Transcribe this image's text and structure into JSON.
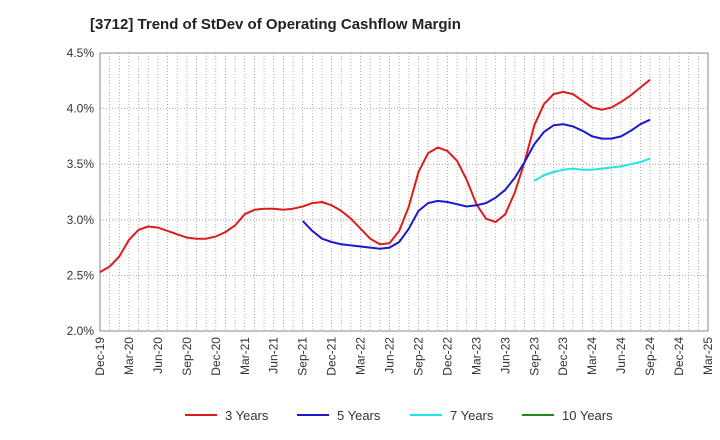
{
  "chart_data": {
    "type": "line",
    "title": "[3712]  Trend of StDev of Operating Cashflow Margin",
    "xlabel": "",
    "ylabel": "",
    "ylim": [
      2.0,
      4.5
    ],
    "y_ticks": [
      "2.0%",
      "2.5%",
      "3.0%",
      "3.5%",
      "4.0%",
      "4.5%"
    ],
    "x_ticks": [
      "Dec-19",
      "Mar-20",
      "Jun-20",
      "Sep-20",
      "Dec-20",
      "Mar-21",
      "Jun-21",
      "Sep-21",
      "Dec-21",
      "Mar-22",
      "Jun-22",
      "Sep-22",
      "Dec-22",
      "Mar-23",
      "Jun-23",
      "Sep-23",
      "Dec-23",
      "Mar-24",
      "Jun-24",
      "Sep-24",
      "Dec-24",
      "Mar-25"
    ],
    "grid": true,
    "legend_position": "bottom",
    "series": [
      {
        "name": "3 Years",
        "color": "#dd1c1c",
        "values": [
          {
            "t": 0,
            "v": 2.53
          },
          {
            "t": 1,
            "v": 2.58
          },
          {
            "t": 2,
            "v": 2.67
          },
          {
            "t": 3,
            "v": 2.82
          },
          {
            "t": 4,
            "v": 2.91
          },
          {
            "t": 5,
            "v": 2.94
          },
          {
            "t": 6,
            "v": 2.93
          },
          {
            "t": 7,
            "v": 2.9
          },
          {
            "t": 8,
            "v": 2.87
          },
          {
            "t": 9,
            "v": 2.84
          },
          {
            "t": 10,
            "v": 2.83
          },
          {
            "t": 11,
            "v": 2.83
          },
          {
            "t": 12,
            "v": 2.85
          },
          {
            "t": 13,
            "v": 2.89
          },
          {
            "t": 14,
            "v": 2.95
          },
          {
            "t": 15,
            "v": 3.05
          },
          {
            "t": 16,
            "v": 3.09
          },
          {
            "t": 17,
            "v": 3.1
          },
          {
            "t": 18,
            "v": 3.1
          },
          {
            "t": 19,
            "v": 3.09
          },
          {
            "t": 20,
            "v": 3.1
          },
          {
            "t": 21,
            "v": 3.12
          },
          {
            "t": 22,
            "v": 3.15
          },
          {
            "t": 23,
            "v": 3.16
          },
          {
            "t": 24,
            "v": 3.13
          },
          {
            "t": 25,
            "v": 3.08
          },
          {
            "t": 26,
            "v": 3.01
          },
          {
            "t": 27,
            "v": 2.92
          },
          {
            "t": 28,
            "v": 2.83
          },
          {
            "t": 29,
            "v": 2.78
          },
          {
            "t": 30,
            "v": 2.79
          },
          {
            "t": 31,
            "v": 2.9
          },
          {
            "t": 32,
            "v": 3.12
          },
          {
            "t": 33,
            "v": 3.43
          },
          {
            "t": 34,
            "v": 3.6
          },
          {
            "t": 35,
            "v": 3.65
          },
          {
            "t": 36,
            "v": 3.62
          },
          {
            "t": 37,
            "v": 3.53
          },
          {
            "t": 38,
            "v": 3.36
          },
          {
            "t": 39,
            "v": 3.14
          },
          {
            "t": 40,
            "v": 3.01
          },
          {
            "t": 41,
            "v": 2.98
          },
          {
            "t": 42,
            "v": 3.05
          },
          {
            "t": 43,
            "v": 3.25
          },
          {
            "t": 44,
            "v": 3.52
          },
          {
            "t": 45,
            "v": 3.85
          },
          {
            "t": 46,
            "v": 4.04
          },
          {
            "t": 47,
            "v": 4.13
          },
          {
            "t": 48,
            "v": 4.15
          },
          {
            "t": 49,
            "v": 4.13
          },
          {
            "t": 50,
            "v": 4.07
          },
          {
            "t": 51,
            "v": 4.01
          },
          {
            "t": 52,
            "v": 3.99
          },
          {
            "t": 53,
            "v": 4.01
          },
          {
            "t": 54,
            "v": 4.06
          },
          {
            "t": 55,
            "v": 4.12
          },
          {
            "t": 56,
            "v": 4.19
          },
          {
            "t": 57,
            "v": 4.26
          }
        ]
      },
      {
        "name": "5 Years",
        "color": "#1a1acc",
        "values": [
          {
            "t": 21,
            "v": 2.99
          },
          {
            "t": 22,
            "v": 2.9
          },
          {
            "t": 23,
            "v": 2.83
          },
          {
            "t": 24,
            "v": 2.8
          },
          {
            "t": 25,
            "v": 2.78
          },
          {
            "t": 26,
            "v": 2.77
          },
          {
            "t": 27,
            "v": 2.76
          },
          {
            "t": 28,
            "v": 2.75
          },
          {
            "t": 29,
            "v": 2.74
          },
          {
            "t": 30,
            "v": 2.75
          },
          {
            "t": 31,
            "v": 2.8
          },
          {
            "t": 32,
            "v": 2.92
          },
          {
            "t": 33,
            "v": 3.08
          },
          {
            "t": 34,
            "v": 3.15
          },
          {
            "t": 35,
            "v": 3.17
          },
          {
            "t": 36,
            "v": 3.16
          },
          {
            "t": 37,
            "v": 3.14
          },
          {
            "t": 38,
            "v": 3.12
          },
          {
            "t": 39,
            "v": 3.13
          },
          {
            "t": 40,
            "v": 3.15
          },
          {
            "t": 41,
            "v": 3.2
          },
          {
            "t": 42,
            "v": 3.27
          },
          {
            "t": 43,
            "v": 3.38
          },
          {
            "t": 44,
            "v": 3.52
          },
          {
            "t": 45,
            "v": 3.68
          },
          {
            "t": 46,
            "v": 3.79
          },
          {
            "t": 47,
            "v": 3.85
          },
          {
            "t": 48,
            "v": 3.86
          },
          {
            "t": 49,
            "v": 3.84
          },
          {
            "t": 50,
            "v": 3.8
          },
          {
            "t": 51,
            "v": 3.75
          },
          {
            "t": 52,
            "v": 3.73
          },
          {
            "t": 53,
            "v": 3.73
          },
          {
            "t": 54,
            "v": 3.75
          },
          {
            "t": 55,
            "v": 3.8
          },
          {
            "t": 56,
            "v": 3.86
          },
          {
            "t": 57,
            "v": 3.9
          }
        ]
      },
      {
        "name": "7 Years",
        "color": "#22e5e5",
        "values": [
          {
            "t": 45,
            "v": 3.35
          },
          {
            "t": 46,
            "v": 3.4
          },
          {
            "t": 47,
            "v": 3.43
          },
          {
            "t": 48,
            "v": 3.45
          },
          {
            "t": 49,
            "v": 3.46
          },
          {
            "t": 50,
            "v": 3.45
          },
          {
            "t": 51,
            "v": 3.45
          },
          {
            "t": 52,
            "v": 3.46
          },
          {
            "t": 53,
            "v": 3.47
          },
          {
            "t": 54,
            "v": 3.48
          },
          {
            "t": 55,
            "v": 3.5
          },
          {
            "t": 56,
            "v": 3.52
          },
          {
            "t": 57,
            "v": 3.55
          }
        ]
      },
      {
        "name": "10 Years",
        "color": "#1e8a1e",
        "values": []
      }
    ]
  }
}
